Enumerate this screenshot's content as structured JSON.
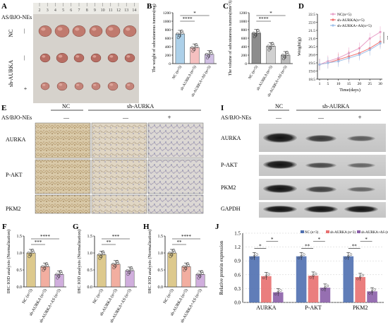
{
  "panel_letters": {
    "A": "A",
    "B": "B",
    "C": "C",
    "D": "D",
    "E": "E",
    "F": "F",
    "G": "G",
    "H": "H",
    "I": "I",
    "J": "J"
  },
  "panelA": {
    "header": "AS/BJO-NEs",
    "ruler_numbers": [
      "2",
      "3",
      "4",
      "5",
      "6",
      "7",
      "8",
      "9",
      "10",
      "11",
      "12",
      "13",
      "14"
    ],
    "row_labels": [
      "NC",
      "sh-AURKA"
    ],
    "row_marks": [
      "—",
      "—",
      "+"
    ]
  },
  "panelE": {
    "header_as": "AS/BJO-NEs",
    "group_nc": "NC",
    "group_sh": "sh-AURKA",
    "signs": [
      "—",
      "—",
      "+"
    ],
    "rows": [
      "AURKA",
      "P-AKT",
      "PKM2"
    ]
  },
  "panelI": {
    "header_as": "AS/BJO-NEs",
    "group_nc": "NC",
    "group_sh": "sh-AURKA",
    "signs": [
      "—",
      "—",
      "+"
    ],
    "rows": [
      "AURKA",
      "P-AKT",
      "PKM2",
      "GAPDH"
    ]
  },
  "chart_data": [
    {
      "panel": "B",
      "type": "bar",
      "categories": [
        "NC (n=5)",
        "sh-AURKA (n=5)",
        "sh-AURKA+AS (n=5)"
      ],
      "values": [
        700,
        380,
        220
      ],
      "ylabel": "The weight of subcutaneous tumors(mg)",
      "ylim": [
        0,
        1200
      ],
      "yticks": [
        0,
        200,
        400,
        600,
        800,
        1000,
        1200
      ],
      "significance": [
        "****",
        "*"
      ],
      "colors": [
        "#9ec8e6",
        "#f4b6b6",
        "#c9b6e0"
      ]
    },
    {
      "panel": "C",
      "type": "bar",
      "categories": [
        "NC (n=5)",
        "sh-AURKA (n=5)",
        "sh-AURKA+AS (n=5)"
      ],
      "values": [
        720,
        410,
        200
      ],
      "ylabel": "The volume of subcutaneous tumors(mm^3)",
      "ylim": [
        0,
        1200
      ],
      "yticks": [
        0,
        200,
        400,
        600,
        800,
        1000,
        1200
      ],
      "significance": [
        "****",
        "*"
      ],
      "colors": [
        "#7a7a7a",
        "#c8c8c8",
        "#b0b0b0"
      ]
    },
    {
      "panel": "D",
      "type": "line",
      "x": [
        1,
        5,
        10,
        15,
        20,
        25,
        30
      ],
      "xticks": [
        "1",
        "5",
        "10",
        "15",
        "20",
        "25",
        "30"
      ],
      "xlabel": "Time(days)",
      "ylabel": "Weight(g)",
      "ylim": [
        18.5,
        22.5
      ],
      "yticks": [
        18.5,
        19.0,
        19.5,
        20.0,
        20.5,
        21.0,
        21.5,
        22.0,
        22.5
      ],
      "significance": [
        "ns"
      ],
      "series": [
        {
          "name": "NC(n=5)",
          "values": [
            19.4,
            19.6,
            19.8,
            20.1,
            20.4,
            21.0,
            21.4
          ],
          "color": "#e8a0c8"
        },
        {
          "name": "sh-AURKA(n=5)",
          "values": [
            19.4,
            19.5,
            19.7,
            19.9,
            20.1,
            20.4,
            20.8
          ],
          "color": "#f07070"
        },
        {
          "name": "sh-AURKA+AS(n=5)",
          "values": [
            19.4,
            19.5,
            19.6,
            19.8,
            20.0,
            20.3,
            20.7
          ],
          "color": "#a0c0e8"
        }
      ]
    },
    {
      "panel": "F",
      "type": "bar",
      "categories": [
        "NC (n=5)",
        "sh-AURKA (n=5)",
        "sh-AURKA+AS (n=5)"
      ],
      "values": [
        1.0,
        0.6,
        0.37
      ],
      "ylabel": "IHC IOD analysis (Normalization)",
      "ylim": [
        0,
        1.5
      ],
      "yticks": [
        "0.0",
        "0.5",
        "1.0",
        "1.5"
      ],
      "significance": [
        "***",
        "****"
      ],
      "colors": [
        "#d8c07a",
        "#f0a090",
        "#c8a0d8"
      ]
    },
    {
      "panel": "G",
      "type": "bar",
      "categories": [
        "NC (n=5)",
        "sh-AURKA (n=5)",
        "sh-AURKA+AS (n=5)"
      ],
      "values": [
        0.95,
        0.67,
        0.48
      ],
      "ylabel": "IHC IOD analysis (Normalization)",
      "ylim": [
        0,
        1.5
      ],
      "yticks": [
        "0.0",
        "0.5",
        "1.0",
        "1.5"
      ],
      "significance": [
        "**",
        "***"
      ],
      "colors": [
        "#d8c07a",
        "#f0a090",
        "#c8a0d8"
      ]
    },
    {
      "panel": "H",
      "type": "bar",
      "categories": [
        "NC (n=5)",
        "sh-AURKA (n=5)",
        "sh-AURKA+AS (n=5)"
      ],
      "values": [
        1.0,
        0.6,
        0.37
      ],
      "ylabel": "IHC IOD analysis (Normalization)",
      "ylim": [
        0,
        1.5
      ],
      "yticks": [
        "0.0",
        "0.5",
        "1.0",
        "1.5"
      ],
      "significance": [
        "**",
        "****"
      ],
      "colors": [
        "#d8c07a",
        "#f0a090",
        "#c8a0d8"
      ]
    },
    {
      "panel": "J",
      "type": "bar",
      "categories": [
        "AURKA",
        "P-AKT",
        "PKM2"
      ],
      "ylabel": "Relative protein expression",
      "ylim": [
        0,
        1.5
      ],
      "yticks": [
        "0.0",
        "0.3",
        "0.6",
        "0.9",
        "1.2",
        "1.5"
      ],
      "legend_placement": "top-right",
      "series": [
        {
          "name": "NC (n=3)",
          "values": [
            1.0,
            1.0,
            1.0
          ],
          "color": "#4f6fb0"
        },
        {
          "name": "sh-AURKA (n=3)",
          "values": [
            0.57,
            0.58,
            0.55
          ],
          "color": "#e87070"
        },
        {
          "name": "sh-AURKA+AS (n=3)",
          "values": [
            0.22,
            0.32,
            0.24
          ],
          "color": "#8b5fa8"
        }
      ],
      "significance": [
        "*",
        "*",
        "**",
        "*",
        "**",
        "*"
      ]
    }
  ]
}
